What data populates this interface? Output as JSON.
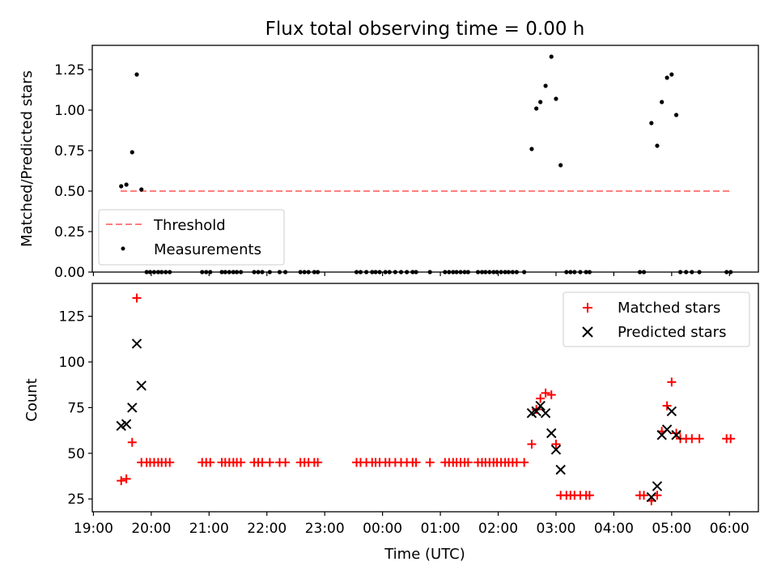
{
  "chart_data": [
    {
      "type": "scatter",
      "title": "Flux total observing time = 0.00 h",
      "xlabel": "",
      "ylabel": "Matched/Predicted stars",
      "x_unit": "hours since 19:00 UTC",
      "xlim": [
        -0.02,
        11.5
      ],
      "ylim": [
        0.0,
        1.4
      ],
      "yticks": [
        0.0,
        0.25,
        0.5,
        0.75,
        1.0,
        1.25
      ],
      "ytick_labels": [
        "0.00",
        "0.25",
        "0.50",
        "0.75",
        "1.00",
        "1.25"
      ],
      "grid": false,
      "legend_position": "lower left",
      "series": [
        {
          "name": "Threshold",
          "kind": "dashed-line",
          "color": "#ff7f7f",
          "x": [
            0.47,
            11.0
          ],
          "y": [
            0.5,
            0.5
          ]
        },
        {
          "name": "Measurements",
          "kind": "dot",
          "color": "#000000",
          "points": [
            [
              0.48,
              0.53
            ],
            [
              0.57,
              0.54
            ],
            [
              0.67,
              0.74
            ],
            [
              0.75,
              1.22
            ],
            [
              0.83,
              0.51
            ],
            [
              0.92,
              0.0
            ],
            [
              0.98,
              0.0
            ],
            [
              1.05,
              0.0
            ],
            [
              1.12,
              0.0
            ],
            [
              1.18,
              0.0
            ],
            [
              1.25,
              0.0
            ],
            [
              1.32,
              0.0
            ],
            [
              1.88,
              0.0
            ],
            [
              1.95,
              0.0
            ],
            [
              2.02,
              0.0
            ],
            [
              2.22,
              0.0
            ],
            [
              2.28,
              0.0
            ],
            [
              2.35,
              0.0
            ],
            [
              2.42,
              0.0
            ],
            [
              2.48,
              0.0
            ],
            [
              2.55,
              0.0
            ],
            [
              2.78,
              0.0
            ],
            [
              2.85,
              0.0
            ],
            [
              2.92,
              0.0
            ],
            [
              3.05,
              0.0
            ],
            [
              3.22,
              0.0
            ],
            [
              3.32,
              0.0
            ],
            [
              3.58,
              0.0
            ],
            [
              3.65,
              0.0
            ],
            [
              3.72,
              0.0
            ],
            [
              3.82,
              0.0
            ],
            [
              3.88,
              0.0
            ],
            [
              4.55,
              0.0
            ],
            [
              4.62,
              0.0
            ],
            [
              4.72,
              0.0
            ],
            [
              4.82,
              0.0
            ],
            [
              4.88,
              0.0
            ],
            [
              4.95,
              0.0
            ],
            [
              5.05,
              0.0
            ],
            [
              5.12,
              0.0
            ],
            [
              5.22,
              0.0
            ],
            [
              5.32,
              0.0
            ],
            [
              5.42,
              0.0
            ],
            [
              5.52,
              0.0
            ],
            [
              5.58,
              0.0
            ],
            [
              5.82,
              0.0
            ],
            [
              6.08,
              0.0
            ],
            [
              6.15,
              0.0
            ],
            [
              6.22,
              0.0
            ],
            [
              6.28,
              0.0
            ],
            [
              6.35,
              0.0
            ],
            [
              6.42,
              0.0
            ],
            [
              6.48,
              0.0
            ],
            [
              6.65,
              0.0
            ],
            [
              6.72,
              0.0
            ],
            [
              6.78,
              0.0
            ],
            [
              6.85,
              0.0
            ],
            [
              6.92,
              0.0
            ],
            [
              6.98,
              0.0
            ],
            [
              7.05,
              0.0
            ],
            [
              7.12,
              0.0
            ],
            [
              7.18,
              0.0
            ],
            [
              7.25,
              0.0
            ],
            [
              7.32,
              0.0
            ],
            [
              7.45,
              0.0
            ],
            [
              7.58,
              0.76
            ],
            [
              7.66,
              1.01
            ],
            [
              7.73,
              1.05
            ],
            [
              7.82,
              1.15
            ],
            [
              7.92,
              1.33
            ],
            [
              8.0,
              1.07
            ],
            [
              8.08,
              0.66
            ],
            [
              8.18,
              0.0
            ],
            [
              8.25,
              0.0
            ],
            [
              8.32,
              0.0
            ],
            [
              8.42,
              0.0
            ],
            [
              8.52,
              0.0
            ],
            [
              8.58,
              0.0
            ],
            [
              9.45,
              0.0
            ],
            [
              9.52,
              0.0
            ],
            [
              9.65,
              0.92
            ],
            [
              9.75,
              0.78
            ],
            [
              9.83,
              1.05
            ],
            [
              9.92,
              1.2
            ],
            [
              10.0,
              1.22
            ],
            [
              10.08,
              0.97
            ],
            [
              10.15,
              0.0
            ],
            [
              10.25,
              0.0
            ],
            [
              10.35,
              0.0
            ],
            [
              10.48,
              0.0
            ],
            [
              10.95,
              0.0
            ],
            [
              11.02,
              0.0
            ]
          ]
        }
      ]
    },
    {
      "type": "scatter",
      "title": "",
      "xlabel": "Time (UTC)",
      "ylabel": "Count",
      "x_unit": "hours since 19:00 UTC",
      "xlim": [
        -0.02,
        11.5
      ],
      "ylim": [
        18,
        143
      ],
      "xticks": [
        0,
        1,
        2,
        3,
        4,
        5,
        6,
        7,
        8,
        9,
        10,
        11
      ],
      "xtick_labels": [
        "19:00",
        "20:00",
        "21:00",
        "22:00",
        "23:00",
        "00:00",
        "01:00",
        "02:00",
        "03:00",
        "04:00",
        "05:00",
        "06:00"
      ],
      "yticks": [
        25,
        50,
        75,
        100,
        125
      ],
      "ytick_labels": [
        "25",
        "50",
        "75",
        "100",
        "125"
      ],
      "grid": false,
      "legend_position": "upper right",
      "series": [
        {
          "name": "Matched stars",
          "kind": "plus",
          "color": "#ff0000",
          "points": [
            [
              0.48,
              35
            ],
            [
              0.57,
              36
            ],
            [
              0.67,
              56
            ],
            [
              0.75,
              135
            ],
            [
              0.83,
              45
            ],
            [
              0.92,
              45
            ],
            [
              0.98,
              45
            ],
            [
              1.05,
              45
            ],
            [
              1.12,
              45
            ],
            [
              1.18,
              45
            ],
            [
              1.25,
              45
            ],
            [
              1.32,
              45
            ],
            [
              1.88,
              45
            ],
            [
              1.95,
              45
            ],
            [
              2.02,
              45
            ],
            [
              2.22,
              45
            ],
            [
              2.28,
              45
            ],
            [
              2.35,
              45
            ],
            [
              2.42,
              45
            ],
            [
              2.48,
              45
            ],
            [
              2.55,
              45
            ],
            [
              2.78,
              45
            ],
            [
              2.85,
              45
            ],
            [
              2.92,
              45
            ],
            [
              3.05,
              45
            ],
            [
              3.22,
              45
            ],
            [
              3.32,
              45
            ],
            [
              3.58,
              45
            ],
            [
              3.65,
              45
            ],
            [
              3.72,
              45
            ],
            [
              3.82,
              45
            ],
            [
              3.88,
              45
            ],
            [
              4.55,
              45
            ],
            [
              4.62,
              45
            ],
            [
              4.72,
              45
            ],
            [
              4.82,
              45
            ],
            [
              4.88,
              45
            ],
            [
              4.95,
              45
            ],
            [
              5.05,
              45
            ],
            [
              5.12,
              45
            ],
            [
              5.22,
              45
            ],
            [
              5.32,
              45
            ],
            [
              5.42,
              45
            ],
            [
              5.52,
              45
            ],
            [
              5.58,
              45
            ],
            [
              5.82,
              45
            ],
            [
              6.08,
              45
            ],
            [
              6.15,
              45
            ],
            [
              6.22,
              45
            ],
            [
              6.28,
              45
            ],
            [
              6.35,
              45
            ],
            [
              6.42,
              45
            ],
            [
              6.48,
              45
            ],
            [
              6.65,
              45
            ],
            [
              6.72,
              45
            ],
            [
              6.78,
              45
            ],
            [
              6.85,
              45
            ],
            [
              6.92,
              45
            ],
            [
              6.98,
              45
            ],
            [
              7.05,
              45
            ],
            [
              7.12,
              45
            ],
            [
              7.18,
              45
            ],
            [
              7.25,
              45
            ],
            [
              7.32,
              45
            ],
            [
              7.45,
              45
            ],
            [
              7.58,
              55
            ],
            [
              7.66,
              74
            ],
            [
              7.73,
              80
            ],
            [
              7.82,
              83
            ],
            [
              7.92,
              82
            ],
            [
              8.0,
              55
            ],
            [
              8.08,
              27
            ],
            [
              8.18,
              27
            ],
            [
              8.25,
              27
            ],
            [
              8.32,
              27
            ],
            [
              8.42,
              27
            ],
            [
              8.52,
              27
            ],
            [
              8.58,
              27
            ],
            [
              9.45,
              27
            ],
            [
              9.52,
              27
            ],
            [
              9.65,
              24
            ],
            [
              9.75,
              27
            ],
            [
              9.83,
              62
            ],
            [
              9.92,
              76
            ],
            [
              10.0,
              89
            ],
            [
              10.08,
              61
            ],
            [
              10.15,
              58
            ],
            [
              10.25,
              58
            ],
            [
              10.35,
              58
            ],
            [
              10.48,
              58
            ],
            [
              10.95,
              58
            ],
            [
              11.02,
              58
            ]
          ]
        },
        {
          "name": "Predicted stars",
          "kind": "x",
          "color": "#000000",
          "points": [
            [
              0.48,
              65
            ],
            [
              0.57,
              66
            ],
            [
              0.67,
              75
            ],
            [
              0.75,
              110
            ],
            [
              0.83,
              87
            ],
            [
              7.58,
              72
            ],
            [
              7.66,
              73
            ],
            [
              7.73,
              76
            ],
            [
              7.82,
              72
            ],
            [
              7.92,
              61
            ],
            [
              8.0,
              52
            ],
            [
              8.08,
              41
            ],
            [
              9.65,
              26
            ],
            [
              9.75,
              32
            ],
            [
              9.83,
              60
            ],
            [
              9.92,
              63
            ],
            [
              10.0,
              73
            ],
            [
              10.08,
              60
            ]
          ]
        }
      ]
    }
  ]
}
